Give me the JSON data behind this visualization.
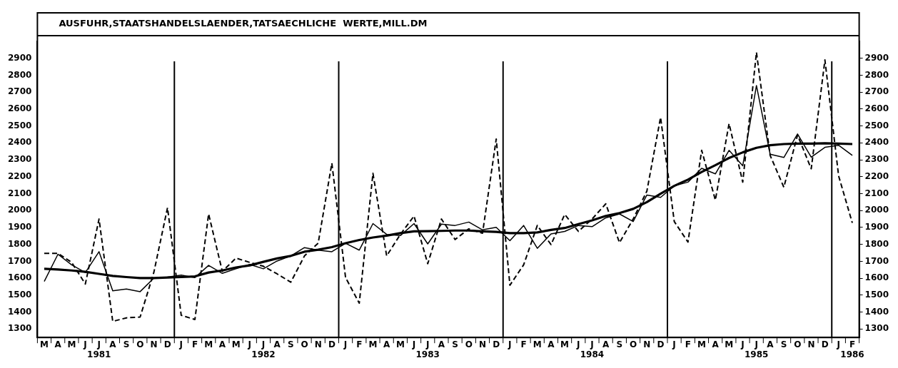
{
  "chart_data": {
    "type": "line",
    "title": "AUSFUHR,STAATSHANDELSLAENDER,TATSAECHLICHE  WERTE,MILL.DM",
    "categories": [
      "M",
      "A",
      "M",
      "J",
      "J\n1981",
      "A",
      "S",
      "O",
      "N",
      "D",
      "J",
      "F",
      "M",
      "A",
      "M",
      "J",
      "J\n1982",
      "A",
      "S",
      "O",
      "N",
      "D",
      "J",
      "F",
      "M",
      "A",
      "M",
      "J",
      "J\n1983",
      "A",
      "S",
      "O",
      "N",
      "D",
      "J",
      "F",
      "M",
      "A",
      "M",
      "J",
      "J\n1984",
      "A",
      "S",
      "O",
      "N",
      "D",
      "J",
      "F",
      "M",
      "A",
      "M",
      "J",
      "J\n1985",
      "A",
      "S",
      "O",
      "N",
      "D",
      "J",
      "F\n1986"
    ],
    "series": [
      {
        "color": "#000000",
        "line_style": "dashed",
        "values": [
          1747,
          1747,
          1694,
          1566,
          1950,
          1345,
          1366,
          1371,
          1634,
          2017,
          1381,
          1356,
          1980,
          1641,
          1719,
          1694,
          1671,
          1626,
          1577,
          1732,
          1807,
          2280,
          1604,
          1453,
          2220,
          1732,
          1859,
          1968,
          1686,
          1950,
          1829,
          1892,
          1866,
          2423,
          1559,
          1679,
          1912,
          1799,
          1977,
          1877,
          1950,
          2040,
          1810,
          1950,
          2115,
          2551,
          1935,
          1814,
          2356,
          2062,
          2514,
          2168,
          2935,
          2326,
          2138,
          2446,
          2247,
          2890,
          2205,
          1927
        ]
      },
      {
        "color": "#000000",
        "line_style": "solid",
        "values": [
          1581,
          1742,
          1679,
          1634,
          1757,
          1526,
          1536,
          1521,
          1601,
          1607,
          1619,
          1604,
          1676,
          1629,
          1656,
          1682,
          1656,
          1702,
          1732,
          1781,
          1766,
          1757,
          1807,
          1766,
          1923,
          1859,
          1852,
          1923,
          1803,
          1920,
          1912,
          1932,
          1886,
          1901,
          1822,
          1912,
          1777,
          1862,
          1877,
          1912,
          1905,
          1957,
          1980,
          1935,
          2092,
          2078,
          2146,
          2168,
          2250,
          2217,
          2356,
          2265,
          2739,
          2333,
          2314,
          2453,
          2316,
          2374,
          2386,
          2326
        ]
      },
      {
        "color": "#000000",
        "line_style": "solid",
        "values": [
          1656,
          1652,
          1646,
          1638,
          1626,
          1614,
          1607,
          1601,
          1601,
          1604,
          1607,
          1611,
          1634,
          1646,
          1664,
          1676,
          1697,
          1717,
          1732,
          1757,
          1769,
          1784,
          1807,
          1826,
          1841,
          1852,
          1867,
          1877,
          1878,
          1880,
          1882,
          1882,
          1877,
          1874,
          1867,
          1867,
          1871,
          1886,
          1897,
          1920,
          1942,
          1968,
          1985,
          2010,
          2050,
          2100,
          2146,
          2183,
          2228,
          2268,
          2311,
          2344,
          2371,
          2386,
          2393,
          2396,
          2396,
          2398,
          2396,
          2393
        ]
      }
    ],
    "ylim": [
      1250,
      3000
    ],
    "yticks": [
      1300,
      1400,
      1500,
      1600,
      1700,
      1800,
      1900,
      2000,
      2100,
      2200,
      2300,
      2400,
      2500,
      2600,
      2700,
      2800,
      2900
    ],
    "y2lim": [
      1250,
      3000
    ],
    "y2ticks": [
      1300,
      1400,
      1500,
      1600,
      1700,
      1800,
      1900,
      2000,
      2100,
      2200,
      2300,
      2400,
      2500,
      2600,
      2700,
      2800,
      2900
    ],
    "grid": false,
    "legend": false,
    "marker": "none"
  }
}
